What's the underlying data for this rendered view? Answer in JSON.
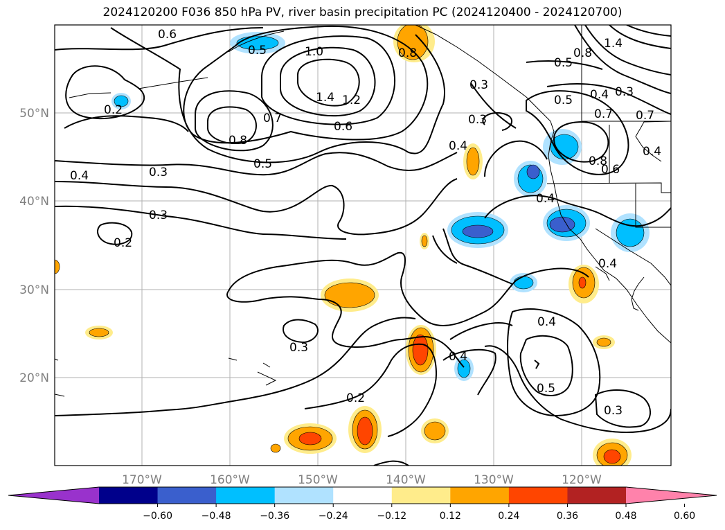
{
  "title": "2024120200 F036 850 hPa PV, river basin precipitation PC (2024120400 - 2024120700)",
  "map": {
    "lon_labels": [
      "170°W",
      "160°W",
      "150°W",
      "140°W",
      "130°W",
      "120°W"
    ],
    "lat_labels": [
      "50°N",
      "40°N",
      "30°N",
      "20°N"
    ],
    "contour_labels": [
      "0.6",
      "0.5",
      "1.0",
      "0.8",
      "1.4",
      "1.2",
      "0.7",
      "0.6",
      "0.8",
      "0.5",
      "0.2",
      "0.4",
      "0.3",
      "0.3",
      "0.2",
      "0.3",
      "0.2",
      "0.4",
      "0.4",
      "0.3",
      "0.4",
      "0.5",
      "0.4",
      "0.3",
      "1.4",
      "0.8",
      "0.5",
      "0.4",
      "0.3",
      "0.5",
      "0.7",
      "0.8",
      "0.6",
      "0.4",
      "0.7",
      "0.4",
      "0.3"
    ]
  },
  "colorbar": {
    "ticks": [
      "−0.60",
      "−0.48",
      "−0.36",
      "−0.24",
      "−0.12",
      "0.12",
      "0.24",
      "0.36",
      "0.48",
      "0.60"
    ],
    "colors": [
      "#9932cc",
      "#00008b",
      "#3a5fcd",
      "#00bfff",
      "#b0e2ff",
      "#ffffff",
      "#ffec8b",
      "#ffa500",
      "#ff4500",
      "#b22222",
      "#ff82ab"
    ]
  }
}
